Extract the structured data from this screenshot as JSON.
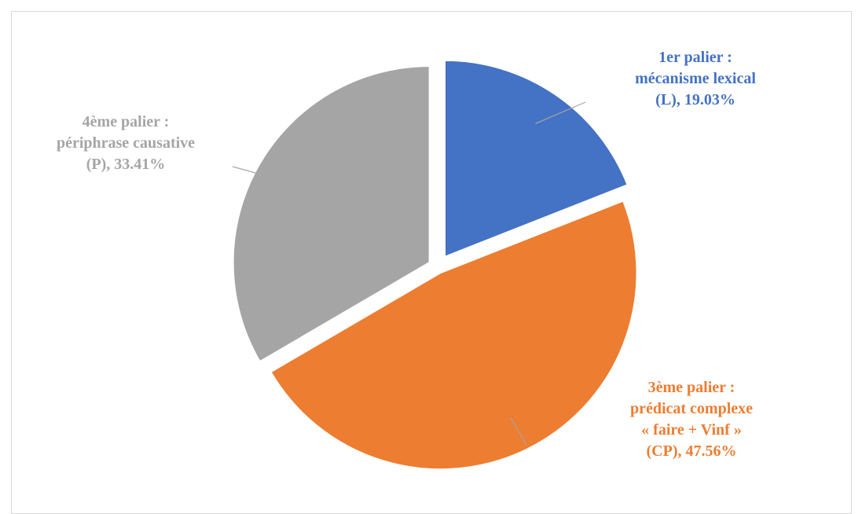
{
  "chart_data": {
    "type": "pie",
    "title": "",
    "legend": "none",
    "slices": [
      {
        "category": "1er palier : mécanisme lexical (L)",
        "value": 19.03,
        "label_lines": [
          "1er palier :",
          "mécanisme lexical",
          "(L), 19.03%"
        ],
        "color": "#4472c4"
      },
      {
        "category": "3ème palier : prédicat complexe « faire + Vinf » (CP)",
        "value": 47.56,
        "label_lines": [
          "3ème palier :",
          "prédicat complexe",
          "« faire + Vinf »",
          "(CP), 47.56%"
        ],
        "color": "#ed7d31"
      },
      {
        "category": "4ème palier : périphrase causative (P)",
        "value": 33.41,
        "label_lines": [
          "4ème palier :",
          "périphrase causative",
          "(P), 33.41%"
        ],
        "color": "#a5a5a5"
      }
    ]
  }
}
